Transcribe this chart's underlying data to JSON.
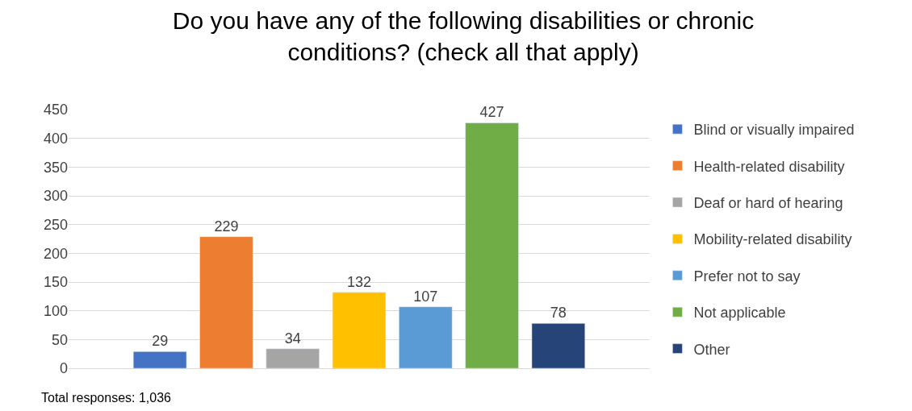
{
  "chart_data": {
    "type": "bar",
    "title": "Do you have any of the following disabilities or chronic conditions? (check all that apply)",
    "categories": [
      null
    ],
    "series": [
      {
        "name": "Blind or visually impaired",
        "color": "#4472c4",
        "values": [
          29
        ]
      },
      {
        "name": "Health-related disability",
        "color": "#ed7d31",
        "values": [
          229
        ]
      },
      {
        "name": "Deaf or hard of hearing",
        "color": "#a5a5a5",
        "values": [
          34
        ]
      },
      {
        "name": "Mobility-related disability",
        "color": "#ffc000",
        "values": [
          132
        ]
      },
      {
        "name": "Prefer not to say",
        "color": "#5b9bd5",
        "values": [
          107
        ]
      },
      {
        "name": "Not applicable",
        "color": "#70ad47",
        "values": [
          427
        ]
      },
      {
        "name": "Other",
        "color": "#264478",
        "values": [
          78
        ]
      }
    ],
    "ylim": [
      0,
      450
    ],
    "yticks": [
      0,
      50,
      100,
      150,
      200,
      250,
      300,
      350,
      400,
      450
    ],
    "grid": "y",
    "legend": "right",
    "data_labels": true,
    "annotations": [
      "Total responses: 1,036"
    ]
  }
}
